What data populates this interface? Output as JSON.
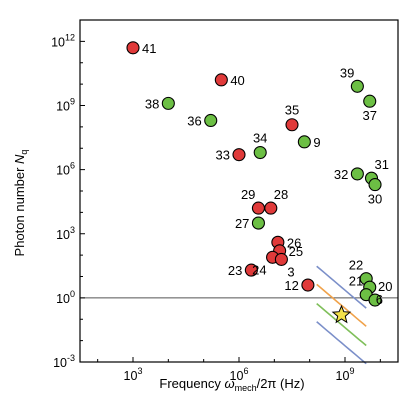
{
  "chart_data": {
    "type": "scatter",
    "xscale": "log",
    "yscale": "log",
    "xlabel": "Frequency ω_mech/2π (Hz)",
    "xlabel_parts": {
      "prefix": "Frequency ",
      "omega": "ω",
      "sub": "mech",
      "suffix": "/2π (Hz)"
    },
    "ylabel": "Photon number N_q",
    "ylabel_parts": {
      "prefix": "Photon number ",
      "N": "N",
      "sub": "q"
    },
    "xlim_exp": [
      1.5,
      10.5
    ],
    "ylim_exp": [
      -3,
      13
    ],
    "x_ticks": [
      {
        "base": "10",
        "exp": "3",
        "value_exp": 3
      },
      {
        "base": "10",
        "exp": "6",
        "value_exp": 6
      },
      {
        "base": "10",
        "exp": "9",
        "value_exp": 9
      }
    ],
    "y_ticks": [
      {
        "base": "10",
        "exp": "-3",
        "value_exp": -3
      },
      {
        "base": "10",
        "exp": "0",
        "value_exp": 0
      },
      {
        "base": "10",
        "exp": "3",
        "value_exp": 3
      },
      {
        "base": "10",
        "exp": "6",
        "value_exp": 6
      },
      {
        "base": "10",
        "exp": "9",
        "value_exp": 9
      },
      {
        "base": "10",
        "exp": "12",
        "value_exp": 12
      }
    ],
    "reference_line_y_exp": 0,
    "colors": {
      "red": "#e03a3a",
      "green": "#6cbf44",
      "star": "#f3e14a"
    },
    "points": [
      {
        "label": "41",
        "color": "red",
        "xe": 3.0,
        "ye": 11.7,
        "lp": "r"
      },
      {
        "label": "40",
        "color": "red",
        "xe": 5.5,
        "ye": 10.2,
        "lp": "r"
      },
      {
        "label": "38",
        "color": "green",
        "xe": 4.0,
        "ye": 9.1,
        "lp": "l"
      },
      {
        "label": "36",
        "color": "green",
        "xe": 5.2,
        "ye": 8.3,
        "lp": "l"
      },
      {
        "label": "35",
        "color": "red",
        "xe": 7.5,
        "ye": 8.1,
        "lp": "u"
      },
      {
        "label": "34",
        "color": "green",
        "xe": 6.6,
        "ye": 6.8,
        "lp": "u"
      },
      {
        "label": "33",
        "color": "red",
        "xe": 6.0,
        "ye": 6.7,
        "lp": "l"
      },
      {
        "label": "9",
        "color": "green",
        "xe": 7.85,
        "ye": 7.3,
        "lp": "r"
      },
      {
        "label": "39",
        "color": "green",
        "xe": 9.35,
        "ye": 9.9,
        "lp": "ul"
      },
      {
        "label": "37",
        "color": "green",
        "xe": 9.7,
        "ye": 9.2,
        "lp": "d"
      },
      {
        "label": "32",
        "color": "green",
        "xe": 9.35,
        "ye": 5.8,
        "lp": "l"
      },
      {
        "label": "31",
        "color": "green",
        "xe": 9.75,
        "ye": 5.6,
        "lp": "ur"
      },
      {
        "label": "30",
        "color": "green",
        "xe": 9.85,
        "ye": 5.3,
        "lp": "d"
      },
      {
        "label": "29",
        "color": "red",
        "xe": 6.55,
        "ye": 4.2,
        "lp": "ul"
      },
      {
        "label": "28",
        "color": "red",
        "xe": 6.9,
        "ye": 4.2,
        "lp": "ur"
      },
      {
        "label": "27",
        "color": "green",
        "xe": 6.55,
        "ye": 3.5,
        "lp": "l"
      },
      {
        "label": "26",
        "color": "red",
        "xe": 7.1,
        "ye": 2.6,
        "lp": "r"
      },
      {
        "label": "25",
        "color": "red",
        "xe": 7.15,
        "ye": 2.2,
        "lp": "r"
      },
      {
        "label": "24",
        "color": "red",
        "xe": 6.95,
        "ye": 1.9,
        "lp": "dl"
      },
      {
        "label": "3",
        "color": "red",
        "xe": 7.2,
        "ye": 1.8,
        "lp": "dr"
      },
      {
        "label": "23",
        "color": "red",
        "xe": 6.35,
        "ye": 1.3,
        "lp": "l"
      },
      {
        "label": "22",
        "color": "green",
        "xe": 9.6,
        "ye": 0.9,
        "lp": "ul"
      },
      {
        "label": "6",
        "color": "green",
        "xe": 9.7,
        "ye": 0.5,
        "lp": "dr"
      },
      {
        "label": "12",
        "color": "red",
        "xe": 7.95,
        "ye": 0.6,
        "lp": "l"
      },
      {
        "label": "21",
        "color": "green",
        "xe": 9.6,
        "ye": 0.15,
        "lp": "ul"
      },
      {
        "label": "20",
        "color": "green",
        "xe": 9.85,
        "ye": -0.1,
        "lp": "ur"
      }
    ],
    "star": {
      "xe": 8.9,
      "ye": -0.8
    },
    "bands": [
      {
        "color": "#7b8fc9",
        "offset": 1.3
      },
      {
        "color": "#f0a24a",
        "offset": 0.45
      },
      {
        "color": "#7fbf5a",
        "offset": -0.45
      },
      {
        "color": "#7b8fc9",
        "offset": -1.3
      }
    ]
  }
}
